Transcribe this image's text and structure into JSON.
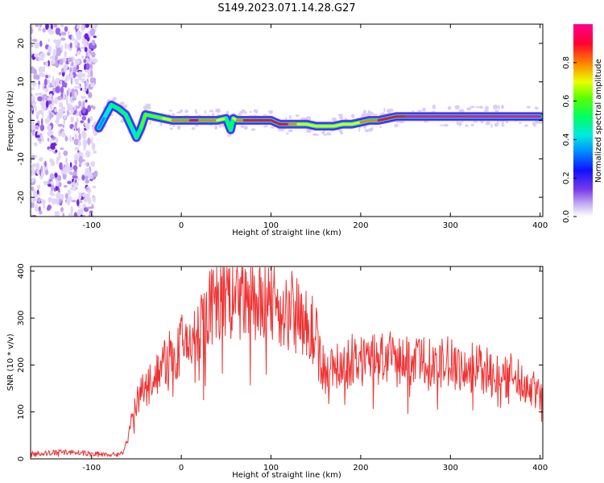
{
  "title": "S149.2023.071.14.28.G27",
  "chart_data": [
    {
      "type": "heatmap",
      "xlabel": "Height of straight line (km)",
      "ylabel": "Frequency (Hz)",
      "xlim": [
        -168,
        403
      ],
      "ylim": [
        -25,
        25
      ],
      "xticks": [
        -100,
        0,
        100,
        200,
        300,
        400
      ],
      "yticks": [
        -20,
        -10,
        0,
        10,
        20
      ],
      "colorbar": {
        "label": "Normalized spectral amplitude",
        "range": [
          0,
          1
        ],
        "ticks": [
          0.0,
          0.2,
          0.4,
          0.6,
          0.8
        ],
        "tick_labels": [
          "0.0",
          "0.2",
          "0.4",
          "0.6",
          "0.8"
        ],
        "colormap": [
          "#ffffff",
          "#d8c8f4",
          "#9a6cf0",
          "#4a18d8",
          "#1020ff",
          "#00ccff",
          "#00ff80",
          "#80ff00",
          "#ffff00",
          "#ff8000",
          "#ff0040",
          "#ff0090"
        ]
      },
      "ridge": {
        "x": [
          -92,
          -85,
          -78,
          -70,
          -62,
          -55,
          -50,
          -45,
          -40,
          -30,
          -20,
          -10,
          0,
          10,
          20,
          30,
          40,
          50,
          55,
          58,
          62,
          70,
          80,
          100,
          110,
          120,
          130,
          140,
          150,
          160,
          170,
          180,
          190,
          200,
          210,
          220,
          230,
          240,
          250,
          300,
          350,
          400
        ],
        "y": [
          -2,
          1,
          4,
          3,
          1.5,
          -2,
          -4.5,
          -2,
          1.5,
          1,
          0.5,
          0,
          0,
          0,
          0,
          0,
          0,
          0.5,
          -2.5,
          0.5,
          0,
          0,
          0,
          0,
          -1,
          -1,
          -1,
          -1,
          -1.5,
          -1.5,
          -1.5,
          -1,
          -1,
          -0.5,
          0,
          0,
          0.5,
          1,
          1,
          1,
          1,
          1
        ],
        "amplitude": [
          0.35,
          0.45,
          0.5,
          0.55,
          0.6,
          0.45,
          0.55,
          0.6,
          0.7,
          0.6,
          0.7,
          0.8,
          0.85,
          0.9,
          0.9,
          0.85,
          0.8,
          0.7,
          0.5,
          0.6,
          0.8,
          0.9,
          0.95,
          0.95,
          0.9,
          0.9,
          0.8,
          0.75,
          0.75,
          0.8,
          0.7,
          0.7,
          0.7,
          0.8,
          0.85,
          0.9,
          0.95,
          0.95,
          1.0,
          1.0,
          1.0,
          1.0
        ]
      },
      "noise_region_x": [
        -168,
        -95
      ]
    },
    {
      "type": "line",
      "xlabel": "Height of straight line (km)",
      "ylabel": "SNR (10 * v/v)",
      "xlim": [
        -168,
        403
      ],
      "ylim": [
        0,
        410
      ],
      "xticks": [
        -100,
        0,
        100,
        200,
        300,
        400
      ],
      "yticks": [
        0,
        100,
        200,
        300,
        400
      ],
      "color": "#ee3333",
      "series": [
        {
          "x": [
            -168,
            -150,
            -130,
            -110,
            -90,
            -75,
            -65,
            -58,
            -50,
            -40,
            -30,
            -20,
            -10,
            0,
            10,
            20,
            30,
            40,
            50,
            60,
            70,
            80,
            90,
            100,
            110,
            120,
            130,
            140,
            150,
            155,
            160,
            170,
            180,
            200,
            220,
            240,
            260,
            280,
            300,
            320,
            340,
            360,
            370,
            380,
            390,
            403
          ],
          "y": [
            10,
            12,
            15,
            12,
            10,
            10,
            12,
            60,
            120,
            150,
            180,
            200,
            220,
            240,
            250,
            280,
            320,
            340,
            345,
            330,
            340,
            335,
            330,
            340,
            330,
            320,
            315,
            300,
            260,
            210,
            190,
            195,
            205,
            210,
            215,
            210,
            205,
            200,
            205,
            195,
            190,
            180,
            175,
            160,
            150,
            150
          ]
        }
      ]
    }
  ]
}
